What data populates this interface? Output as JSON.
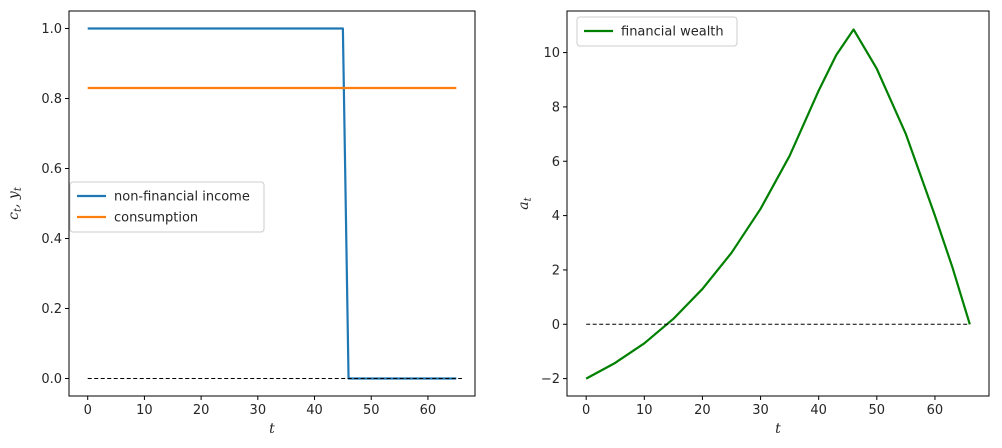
{
  "chart_data": [
    {
      "type": "line",
      "title": "",
      "xlabel": "t",
      "ylabel": "c_t, y_t",
      "xlim": [
        -3.3,
        68.3
      ],
      "ylim": [
        -0.05,
        1.05
      ],
      "xticks": [
        0,
        10,
        20,
        30,
        40,
        50,
        60
      ],
      "yticks": [
        0.0,
        0.2,
        0.4,
        0.6,
        0.8,
        1.0
      ],
      "ytick_labels": [
        "0.0",
        "0.2",
        "0.4",
        "0.6",
        "0.8",
        "1.0"
      ],
      "legend": "center-left",
      "grid": false,
      "series": [
        {
          "name": "non-financial income",
          "color": "#1f77b4",
          "style": "solid",
          "x": [
            0,
            45,
            46,
            65
          ],
          "y": [
            1.0,
            1.0,
            0.0,
            0.0
          ]
        },
        {
          "name": "consumption",
          "color": "#ff7f0e",
          "style": "solid",
          "x": [
            0,
            65
          ],
          "y": [
            0.83,
            0.83
          ]
        },
        {
          "color": "#000000",
          "style": "dashed",
          "x": [
            0,
            66
          ],
          "y": [
            0,
            0
          ]
        }
      ]
    },
    {
      "type": "line",
      "title": "",
      "xlabel": "t",
      "ylabel": "a_t",
      "xlim": [
        -3.3,
        69.3
      ],
      "ylim": [
        -2.64,
        11.53
      ],
      "xticks": [
        0,
        10,
        20,
        30,
        40,
        50,
        60
      ],
      "yticks": [
        -2,
        0,
        2,
        4,
        6,
        8,
        10
      ],
      "ytick_labels": [
        "−2",
        "0",
        "2",
        "4",
        "6",
        "8",
        "10"
      ],
      "legend": "top-left",
      "grid": false,
      "series": [
        {
          "name": "financial wealth",
          "color": "#008000",
          "style": "solid",
          "x": [
            0,
            5,
            10,
            15,
            20,
            25,
            30,
            35,
            40,
            43,
            46,
            50,
            55,
            60,
            63,
            66
          ],
          "y": [
            -2.0,
            -1.42,
            -0.7,
            0.2,
            1.3,
            2.63,
            4.25,
            6.2,
            8.6,
            9.9,
            10.85,
            9.4,
            7.0,
            4.0,
            2.1,
            0.0
          ]
        },
        {
          "color": "#000000",
          "style": "dashed",
          "x": [
            0,
            66
          ],
          "y": [
            0,
            0
          ]
        }
      ]
    }
  ]
}
